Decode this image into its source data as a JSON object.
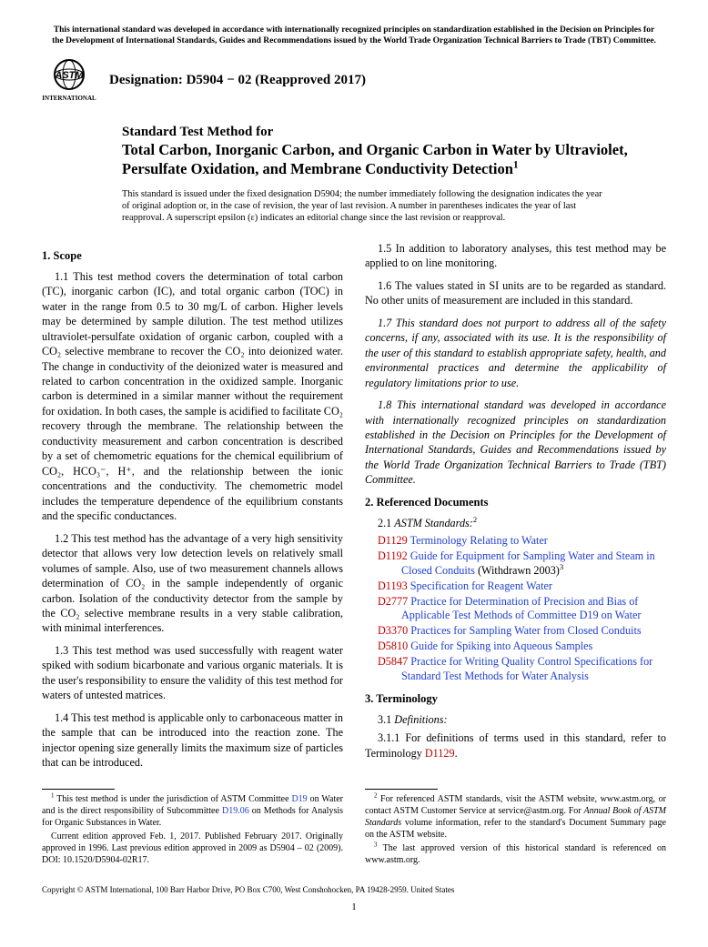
{
  "top_notice": "This international standard was developed in accordance with internationally recognized principles on standardization established in the Decision on Principles for the Development of International Standards, Guides and Recommendations issued by the World Trade Organization Technical Barriers to Trade (TBT) Committee.",
  "logo_text": "INTERNATIONAL",
  "designation_prefix": "Designation: D5904 − 02 (Reapproved 2017)",
  "title_line1": "Standard Test Method for",
  "title_line2": "Total Carbon, Inorganic Carbon, and Organic Carbon in Water by Ultraviolet, Persulfate Oxidation, and Membrane Conductivity Detection",
  "title_sup": "1",
  "issue_note": "This standard is issued under the fixed designation D5904; the number immediately following the designation indicates the year of original adoption or, in the case of revision, the year of last revision. A number in parentheses indicates the year of last reapproval. A superscript epsilon (ε) indicates an editorial change since the last revision or reapproval.",
  "sections": {
    "scope_head": "1. Scope",
    "p1_1": "1.1 This test method covers the determination of total carbon (TC), inorganic carbon (IC), and total organic carbon (TOC) in water in the range from 0.5 to 30 mg/L of carbon. Higher levels may be determined by sample dilution. The test method utilizes ultraviolet-persulfate oxidation of organic carbon, coupled with a CO₂ selective membrane to recover the CO₂ into deionized water. The change in conductivity of the deionized water is measured and related to carbon concentration in the oxidized sample. Inorganic carbon is determined in a similar manner without the requirement for oxidation. In both cases, the sample is acidified to facilitate CO₂ recovery through the membrane. The relationship between the conductivity measurement and carbon concentration is described by a set of chemometric equations for the chemical equilibrium of CO₂, HCO₃⁻, H⁺, and the relationship between the ionic concentrations and the conductivity. The chemometric model includes the temperature dependence of the equilibrium constants and the specific conductances.",
    "p1_2": "1.2 This test method has the advantage of a very high sensitivity detector that allows very low detection levels on relatively small volumes of sample. Also, use of two measurement channels allows determination of CO₂ in the sample independently of organic carbon. Isolation of the conductivity detector from the sample by the CO₂ selective membrane results in a very stable calibration, with minimal interferences.",
    "p1_3": "1.3 This test method was used successfully with reagent water spiked with sodium bicarbonate and various organic materials. It is the user's responsibility to ensure the validity of this test method for waters of untested matrices.",
    "p1_4": "1.4 This test method is applicable only to carbonaceous matter in the sample that can be introduced into the reaction zone. The injector opening size generally limits the maximum size of particles that can be introduced.",
    "p1_5": "1.5 In addition to laboratory analyses, this test method may be applied to on line monitoring.",
    "p1_6": "1.6 The values stated in SI units are to be regarded as standard. No other units of measurement are included in this standard.",
    "p1_7": "1.7 This standard does not purport to address all of the safety concerns, if any, associated with its use. It is the responsibility of the user of this standard to establish appropriate safety, health, and environmental practices and determine the applicability of regulatory limitations prior to use.",
    "p1_8": "1.8 This international standard was developed in accordance with internationally recognized principles on standardization established in the Decision on Principles for the Development of International Standards, Guides and Recommendations issued by the World Trade Organization Technical Barriers to Trade (TBT) Committee.",
    "ref_head": "2. Referenced Documents",
    "ref_sub": "2.1 ",
    "ref_sub_ital": "ASTM Standards:",
    "ref_sup": "2",
    "refs": [
      {
        "num": "D1129",
        "title": "Terminology Relating to Water",
        "suffix": ""
      },
      {
        "num": "D1192",
        "title": "Guide for Equipment for Sampling Water and Steam in Closed Conduits",
        "suffix": " (Withdrawn 2003)",
        "sup": "3"
      },
      {
        "num": "D1193",
        "title": "Specification for Reagent Water",
        "suffix": ""
      },
      {
        "num": "D2777",
        "title": "Practice for Determination of Precision and Bias of Applicable Test Methods of Committee D19 on Water",
        "suffix": ""
      },
      {
        "num": "D3370",
        "title": "Practices for Sampling Water from Closed Conduits",
        "suffix": ""
      },
      {
        "num": "D5810",
        "title": "Guide for Spiking into Aqueous Samples",
        "suffix": ""
      },
      {
        "num": "D5847",
        "title": "Practice for Writing Quality Control Specifications for Standard Test Methods for Water Analysis",
        "suffix": ""
      }
    ],
    "term_head": "3. Terminology",
    "term_sub1": "3.1 ",
    "term_sub1_ital": "Definitions:",
    "term_p": "3.1.1 For definitions of terms used in this standard, refer to Terminology ",
    "term_ref": "D1129",
    "term_end": "."
  },
  "footnotes": {
    "left1_a": " This test method is under the jurisdiction of ASTM Committee ",
    "left1_link1": "D19",
    "left1_b": " on Water and is the direct responsibility of Subcommittee ",
    "left1_link2": "D19.06",
    "left1_c": " on Methods for Analysis for Organic Substances in Water.",
    "left2": "Current edition approved Feb. 1, 2017. Published February 2017. Originally approved in 1996. Last previous edition approved in 2009 as D5904 – 02 (2009). DOI: 10.1520/D5904-02R17.",
    "right1_pre": " For referenced ASTM standards, visit the ASTM website, www.astm.org, or contact ASTM Customer Service at service@astm.org. For ",
    "right1_ital": "Annual Book of ASTM Standards",
    "right1_post": " volume information, refer to the standard's Document Summary page on the ASTM website.",
    "right2": " The last approved version of this historical standard is referenced on www.astm.org."
  },
  "copyright": "Copyright © ASTM International, 100 Barr Harbor Drive, PO Box C700, West Conshohocken, PA 19428-2959. United States",
  "page_num": "1"
}
